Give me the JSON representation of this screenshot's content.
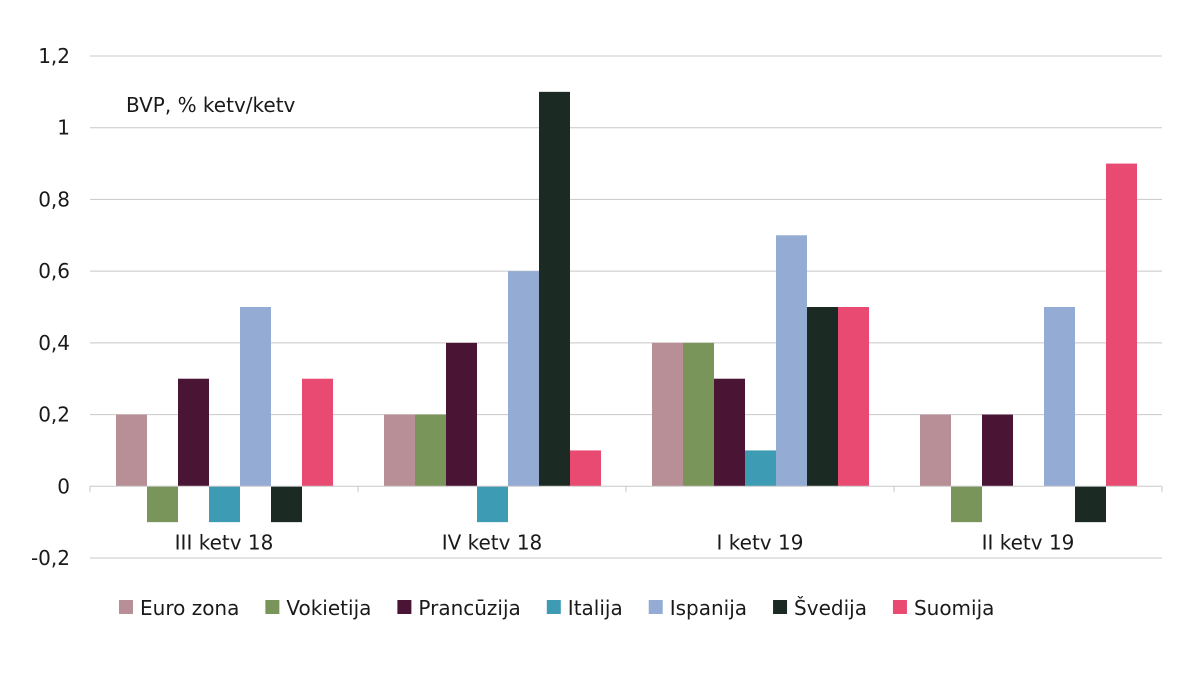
{
  "chart_data": {
    "type": "bar",
    "annotation": "BVP, % ketv/ketv",
    "categories": [
      "III ketv 18",
      "IV ketv 18",
      "I ketv 19",
      "II ketv 19"
    ],
    "y_ticks": [
      "1,2",
      "1",
      "0,8",
      "0,6",
      "0,4",
      "0,2",
      "0",
      "-0,2"
    ],
    "ylim": [
      -0.2,
      1.2
    ],
    "grid": true,
    "legend_position": "bottom",
    "series": [
      {
        "name": "Euro zona",
        "color": "#b88f96",
        "values": [
          0.2,
          0.2,
          0.4,
          0.2
        ]
      },
      {
        "name": "Vokietija",
        "color": "#7a9559",
        "values": [
          -0.1,
          0.2,
          0.4,
          -0.1
        ]
      },
      {
        "name": "Prancūzija",
        "color": "#4a1534",
        "values": [
          0.3,
          0.4,
          0.3,
          0.2
        ]
      },
      {
        "name": "Italija",
        "color": "#3d9bb3",
        "values": [
          -0.1,
          -0.1,
          0.1,
          0
        ]
      },
      {
        "name": "Ispanija",
        "color": "#94acd3",
        "values": [
          0.5,
          0.6,
          0.7,
          0.5
        ]
      },
      {
        "name": "Švedija",
        "color": "#1b2a22",
        "values": [
          -0.1,
          1.1,
          0.5,
          -0.1
        ]
      },
      {
        "name": "Suomija",
        "color": "#e94a72",
        "values": [
          0.3,
          0.1,
          0.5,
          0.9
        ]
      }
    ]
  }
}
